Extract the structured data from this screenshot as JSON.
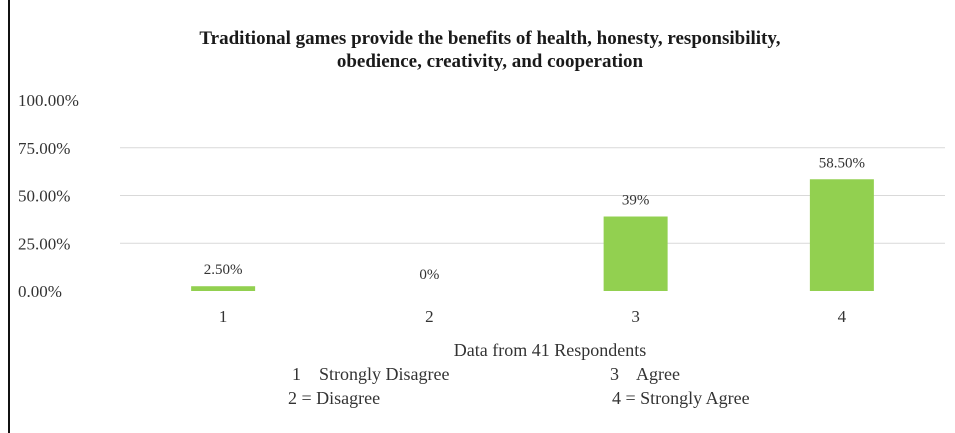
{
  "chart_data": {
    "type": "bar",
    "title_line1": "Traditional games provide the benefits of health, honesty, responsibility,",
    "title_line2": "obedience, creativity, and cooperation",
    "categories": [
      "1",
      "2",
      "3",
      "4"
    ],
    "values": [
      2.5,
      0,
      39,
      58.5
    ],
    "data_labels": [
      "2.50%",
      "0%",
      "39%",
      "58.50%"
    ],
    "y_ticks": [
      "100.00%",
      "75.00%",
      "50.00%",
      "25.00%",
      "0.00%"
    ],
    "ylim": [
      0,
      100
    ],
    "xlabel": "Data from 41 Respondents",
    "grid": true,
    "bar_color": "#92d050",
    "legend": {
      "item1": "1    Strongly Disagree",
      "item2": "2 = Disagree",
      "item3": "3    Agree",
      "item4": "4 = Strongly Agree"
    }
  }
}
